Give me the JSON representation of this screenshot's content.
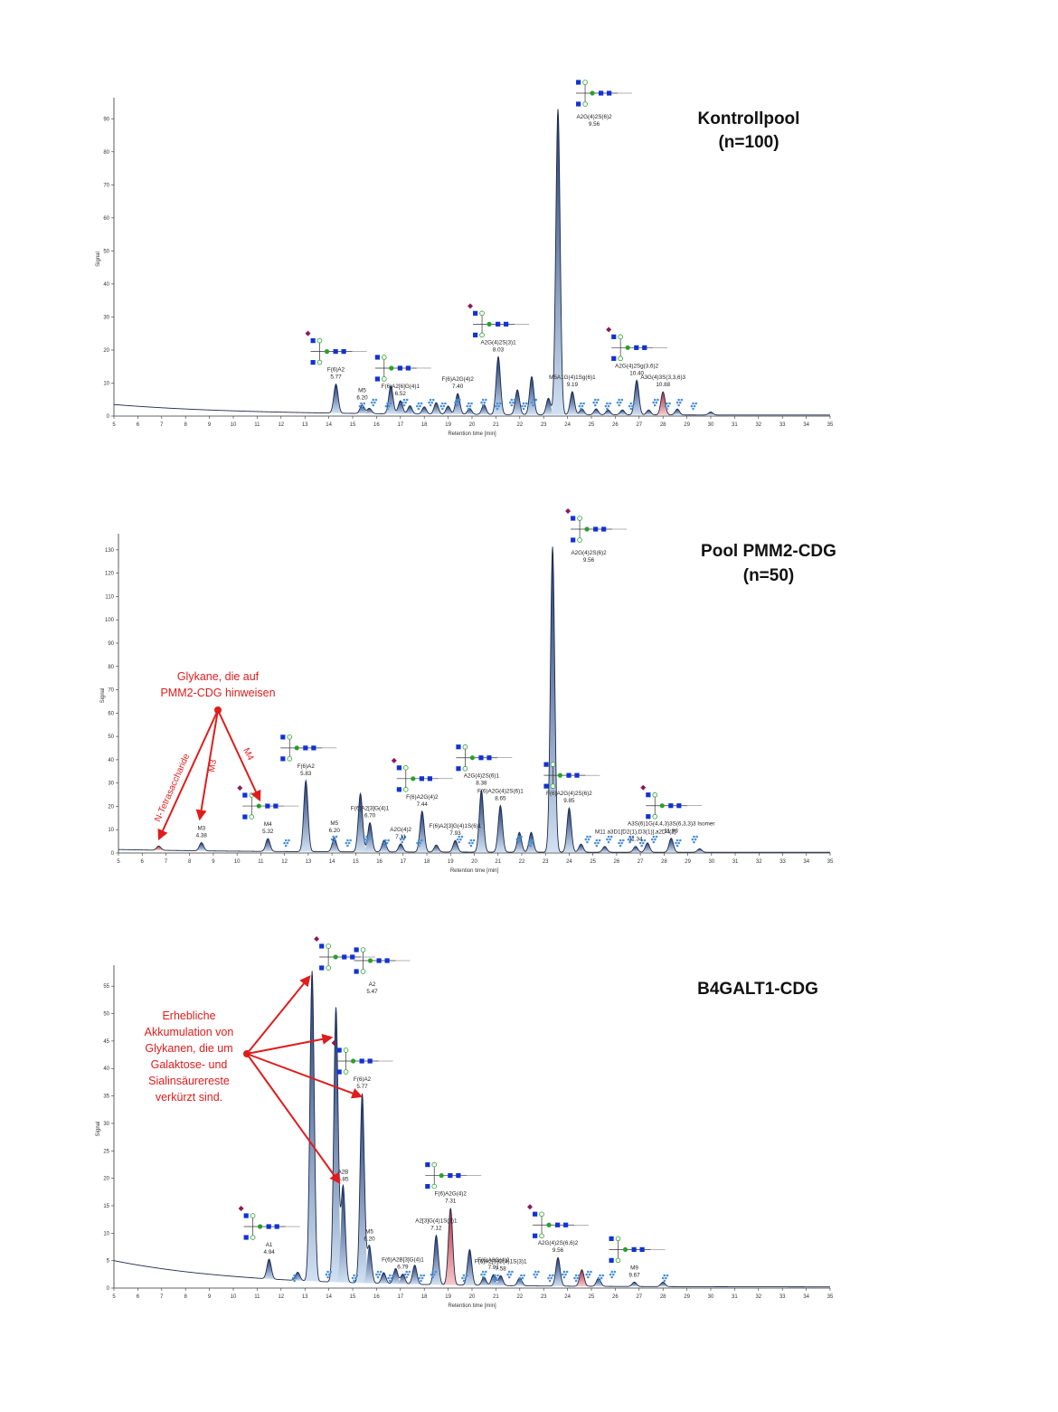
{
  "colors": {
    "trace": "#1c2a4d",
    "peak_fill_top": "#14306e",
    "peak_fill_bottom": "#cfe0f2",
    "highlight_top": "#b3202c",
    "highlight_bottom": "#f6c7c9",
    "annotation": "#e01c1c",
    "glycan_blue": "#1232d4",
    "glycan_icon": "#4a90d9"
  },
  "chart_data": [
    {
      "type": "area",
      "id": "kontrollpool",
      "title_lines": [
        "Kontrollpool",
        "(n=100)"
      ],
      "xlabel": "Retention time [min]",
      "ylabel": "Signal",
      "xlim": [
        5,
        35
      ],
      "ylim": [
        0,
        95
      ],
      "x_ticks": [
        5,
        6,
        7,
        8,
        9,
        10,
        11,
        12,
        13,
        14,
        15,
        16,
        17,
        18,
        19,
        20,
        21,
        22,
        23,
        24,
        25,
        26,
        27,
        28,
        29,
        30,
        31,
        32,
        33,
        34,
        35
      ],
      "y_ticks": [
        0,
        10,
        20,
        30,
        40,
        50,
        60,
        70,
        80,
        90
      ],
      "baseline": {
        "start": 3.2,
        "end": 0.3
      },
      "peaks": [
        {
          "x": 14.3,
          "y": 8.8,
          "name": "F(6)A2",
          "value": "5.77",
          "glycan": true
        },
        {
          "x": 15.4,
          "y": 2.6,
          "name": "M5",
          "value": "6.20"
        },
        {
          "x": 15.7,
          "y": 1.6
        },
        {
          "x": 16.6,
          "y": 8.5
        },
        {
          "x": 17.0,
          "y": 4.0,
          "name": "F(6)A2[6]G(4)1",
          "value": "6.52",
          "glycan": true
        },
        {
          "x": 17.4,
          "y": 2.5
        },
        {
          "x": 18.0,
          "y": 2.2
        },
        {
          "x": 18.5,
          "y": 3.5
        },
        {
          "x": 19.0,
          "y": 2.5
        },
        {
          "x": 19.4,
          "y": 6.3,
          "name": "F(6)A2G(4)2",
          "value": "7.40"
        },
        {
          "x": 19.9,
          "y": 1.8
        },
        {
          "x": 20.5,
          "y": 3.0
        },
        {
          "x": 21.1,
          "y": 17.5,
          "name": "A2G(4)2S(3)1",
          "value": "8.03",
          "glycan": true
        },
        {
          "x": 21.9,
          "y": 7.5
        },
        {
          "x": 22.5,
          "y": 11.5
        },
        {
          "x": 23.2,
          "y": 5.0
        },
        {
          "x": 23.6,
          "y": 92.5,
          "name": "A2G(4)2S(6)2",
          "value": "9.56",
          "glycan": true
        },
        {
          "x": 24.2,
          "y": 7.0,
          "name": "M5A1G(4)1Sg(6)1",
          "value": "9.19"
        },
        {
          "x": 24.6,
          "y": 1.8
        },
        {
          "x": 25.2,
          "y": 1.8
        },
        {
          "x": 25.7,
          "y": 1.5
        },
        {
          "x": 26.3,
          "y": 1.5
        },
        {
          "x": 26.9,
          "y": 10.5,
          "name": "A2G(4)2Sg(3,6)2",
          "value": "10.40",
          "glycan": true
        },
        {
          "x": 27.4,
          "y": 1.5
        },
        {
          "x": 28.0,
          "y": 7.0,
          "name": "A3G(4)3S(3,3,6)3",
          "value": "10.88",
          "highlight": true
        },
        {
          "x": 28.6,
          "y": 1.8
        },
        {
          "x": 30.0,
          "y": 0.9
        }
      ],
      "icons_x": [
        15.3,
        15.8,
        16.4,
        17.1,
        17.7,
        18.2,
        18.7,
        19.3,
        19.8,
        20.4,
        21.0,
        21.6,
        22.1,
        22.5,
        24.5,
        25.1,
        25.6,
        26.1,
        26.6,
        27.6,
        28.1,
        28.6,
        29.2
      ]
    },
    {
      "type": "area",
      "id": "pool-pmm2-cdg",
      "title_lines": [
        "Pool PMM2-CDG",
        "(n=50)"
      ],
      "xlabel": "Retention time [min]",
      "ylabel": "Signal",
      "xlim": [
        5,
        35
      ],
      "ylim": [
        0,
        135
      ],
      "x_ticks": [
        5,
        6,
        7,
        8,
        9,
        10,
        11,
        12,
        13,
        14,
        15,
        16,
        17,
        18,
        19,
        20,
        21,
        22,
        23,
        24,
        25,
        26,
        27,
        28,
        29,
        30,
        31,
        32,
        33,
        34,
        35
      ],
      "y_ticks": [
        0,
        10,
        20,
        30,
        40,
        50,
        60,
        70,
        80,
        90,
        100,
        110,
        120,
        130
      ],
      "baseline": {
        "start": 1.2,
        "end": 0.3
      },
      "peaks": [
        {
          "x": 6.7,
          "y": 1.8,
          "highlight": true
        },
        {
          "x": 8.5,
          "y": 3.5,
          "name": "M3",
          "value": "4.38"
        },
        {
          "x": 11.3,
          "y": 5.5,
          "name": "M4",
          "value": "5.32",
          "glycan": true
        },
        {
          "x": 12.9,
          "y": 30.5,
          "name": "F(6)A2",
          "value": "5.83",
          "glycan": true
        },
        {
          "x": 14.1,
          "y": 6.0,
          "name": "M5",
          "value": "6.20"
        },
        {
          "x": 15.2,
          "y": 25.0
        },
        {
          "x": 15.6,
          "y": 12.5,
          "name": "F(6)A2[3]G(4)1",
          "value": "6.70"
        },
        {
          "x": 16.2,
          "y": 5.0
        },
        {
          "x": 16.9,
          "y": 3.5,
          "name": "A2G(4)2",
          "value": "7.11"
        },
        {
          "x": 17.8,
          "y": 17.5,
          "name": "F(6)A2G(4)2",
          "value": "7.44",
          "glycan": true
        },
        {
          "x": 18.4,
          "y": 3.0
        },
        {
          "x": 19.2,
          "y": 5.0,
          "name": "F(6)A2[3]G(4)1S(6)1",
          "value": "7.93"
        },
        {
          "x": 20.3,
          "y": 26.5,
          "name": "A2G(4)2S(6)1",
          "value": "8.38",
          "glycan": true
        },
        {
          "x": 21.1,
          "y": 20.0,
          "name": "F(6)A2G(4)2S(6)1",
          "value": "8.65"
        },
        {
          "x": 21.9,
          "y": 8.5
        },
        {
          "x": 22.4,
          "y": 8.5
        },
        {
          "x": 23.3,
          "y": 131.0,
          "name": "A2G(4)2S(6)2",
          "value": "9.56",
          "glycan": true
        },
        {
          "x": 24.0,
          "y": 19.0,
          "name": "F(6)A2G(4)2S(6)2",
          "value": "9.85",
          "glycan": true
        },
        {
          "x": 24.5,
          "y": 3.5
        },
        {
          "x": 25.5,
          "y": 2.5
        },
        {
          "x": 26.8,
          "y": 2.5,
          "name": "M11 a3D1[D2(1),D3(1)],a2D4(2)",
          "value": "11.34"
        },
        {
          "x": 27.3,
          "y": 4.0
        },
        {
          "x": 28.3,
          "y": 6.0,
          "name": "A3S(6)1G(4,4,3)3S(6,3,3)3 Isomer",
          "value": "11.88",
          "glycan": true
        },
        {
          "x": 29.5,
          "y": 1.5
        }
      ],
      "icons_x": [
        12.0,
        14.0,
        14.6,
        15.4,
        16.2,
        16.9,
        17.6,
        19.3,
        19.8,
        21.8,
        22.3,
        24.7,
        25.1,
        25.6,
        26.1,
        26.5,
        27.0,
        27.5,
        28.5,
        29.2
      ]
    },
    {
      "type": "area",
      "id": "b4galt1-cdg",
      "title_lines": [
        "B4GALT1-CDG"
      ],
      "xlabel": "Retention time [min]",
      "ylabel": "Signal",
      "xlim": [
        5,
        35
      ],
      "ylim": [
        0,
        58
      ],
      "x_ticks": [
        5,
        6,
        7,
        8,
        9,
        10,
        11,
        12,
        13,
        14,
        15,
        16,
        17,
        18,
        19,
        20,
        21,
        22,
        23,
        24,
        25,
        26,
        27,
        28,
        29,
        30,
        31,
        32,
        33,
        34,
        35
      ],
      "y_ticks": [
        0,
        5,
        10,
        15,
        20,
        25,
        30,
        35,
        40,
        45,
        50,
        55
      ],
      "baseline": {
        "start": 4.8,
        "end": 0.2
      },
      "peaks": [
        {
          "x": 11.5,
          "y": 3.6,
          "name": "A1",
          "value": "4.94",
          "glycan": true
        },
        {
          "x": 12.7,
          "y": 1.5
        },
        {
          "x": 13.3,
          "y": 56.5,
          "glycan": true
        },
        {
          "x": 14.3,
          "y": 50.0,
          "name": "A2",
          "value": "5.47",
          "glycan": true
        },
        {
          "x": 14.6,
          "y": 17.5,
          "name": "A2B",
          "value": "5.85"
        },
        {
          "x": 15.4,
          "y": 34.5,
          "name": "F(6)A2",
          "value": "5.77",
          "glycan": true
        },
        {
          "x": 15.7,
          "y": 6.8,
          "name": "M5",
          "value": "6.20"
        },
        {
          "x": 16.3,
          "y": 2.0
        },
        {
          "x": 16.8,
          "y": 2.8
        },
        {
          "x": 17.1,
          "y": 1.8,
          "name": "F(6)A2B[3]G(4)1",
          "value": "6.79"
        },
        {
          "x": 17.6,
          "y": 3.5
        },
        {
          "x": 18.5,
          "y": 9.0,
          "name": "A2[3]G(4)1S(3)1",
          "value": "7.12"
        },
        {
          "x": 19.1,
          "y": 14.0,
          "name": "F(6)A2G(4)2",
          "value": "7.31",
          "glycan": true,
          "highlight": true
        },
        {
          "x": 19.9,
          "y": 6.5
        },
        {
          "x": 20.5,
          "y": 1.5
        },
        {
          "x": 20.9,
          "y": 2.0,
          "name": "F(6)A3G(4)2",
          "value": "7.91"
        },
        {
          "x": 21.2,
          "y": 1.8,
          "name": "F(6)A2[3]G(4)1S(3)1",
          "value": "7.58"
        },
        {
          "x": 22.0,
          "y": 1.5
        },
        {
          "x": 23.6,
          "y": 5.2,
          "name": "A2G(4)2S(6,6)2",
          "value": "9.56",
          "glycan": true
        },
        {
          "x": 24.6,
          "y": 3.0,
          "highlight": true
        },
        {
          "x": 25.3,
          "y": 1.5
        },
        {
          "x": 26.8,
          "y": 0.8,
          "name": "M9",
          "value": "9.67",
          "glycan": true
        },
        {
          "x": 28.0,
          "y": 0.8
        }
      ],
      "icons_x": [
        12.5,
        13.9,
        15.0,
        16.0,
        16.5,
        17.2,
        17.8,
        18.3,
        19.6,
        20.4,
        20.9,
        21.5,
        22.0,
        22.6,
        23.2,
        23.8,
        24.3,
        24.8,
        25.3,
        25.8,
        28.0
      ]
    }
  ],
  "annotations": {
    "pmm2_note_lines": [
      "Glykane,  die auf",
      "PMM2-CDG hinweisen"
    ],
    "pmm2_arrow_labels": [
      "N-Tetrasaccharide",
      "M3",
      "M4"
    ],
    "b4galt1_note_lines": [
      "Erhebliche",
      "Akkumulation von",
      "Glykanen,  die um",
      "Galaktose-  und",
      "Sialinsäurereste",
      "verkürzt  sind."
    ]
  }
}
